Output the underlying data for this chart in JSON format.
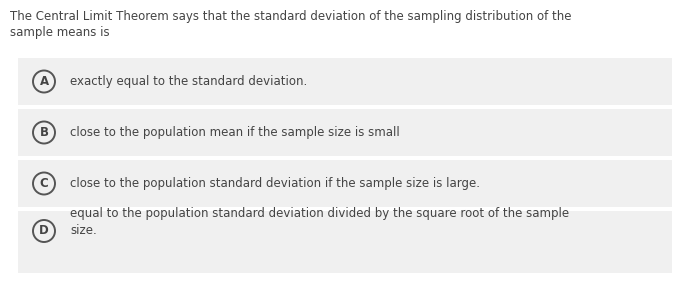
{
  "question_line1": "The Central Limit Theorem says that the standard deviation of the sampling distribution of the",
  "question_line2": "sample means is",
  "options": [
    {
      "label": "A",
      "text": "exactly equal to the standard deviation.",
      "multiline": false
    },
    {
      "label": "B",
      "text": "close to the population mean if the sample size is small",
      "multiline": false
    },
    {
      "label": "C",
      "text": "close to the population standard deviation if the sample size is large.",
      "multiline": false
    },
    {
      "label": "D",
      "text": "equal to the population standard deviation divided by the square root of the sample\nsize.",
      "multiline": true
    }
  ],
  "bg_color": "#ffffff",
  "option_bg_color": "#f0f0f0",
  "question_color": "#444444",
  "option_text_color": "#444444",
  "circle_edge_color": "#555555",
  "circle_fill_color": "#f0f0f0",
  "font_size": 8.5,
  "label_font_size": 8.5,
  "fig_width": 6.82,
  "fig_height": 3.06,
  "dpi": 100
}
